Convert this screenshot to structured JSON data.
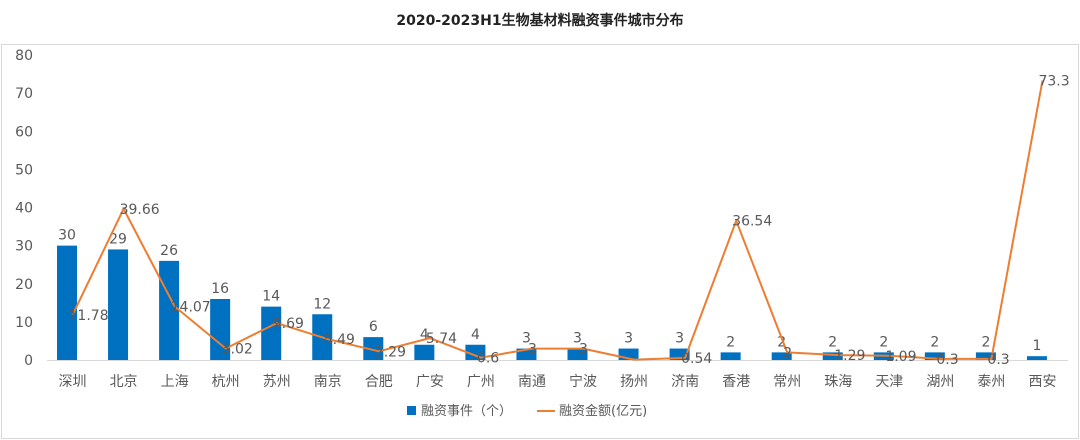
{
  "chart_data": {
    "type": "bar",
    "title": "2020-2023H1生物基材料融资事件城市分布",
    "categories": [
      "深圳",
      "北京",
      "上海",
      "杭州",
      "苏州",
      "南京",
      "合肥",
      "广安",
      "广州",
      "南通",
      "宁波",
      "扬州",
      "济南",
      "香港",
      "常州",
      "珠海",
      "天津",
      "湖州",
      "泰州",
      "西安"
    ],
    "series": [
      {
        "name": "融资事件（个）",
        "type": "bar",
        "values": [
          30,
          29,
          26,
          16,
          14,
          12,
          6,
          4,
          4,
          3,
          3,
          3,
          3,
          2,
          2,
          2,
          2,
          2,
          2,
          1
        ]
      },
      {
        "name": "融资金额(亿元)",
        "type": "line",
        "values": [
          11.78,
          39.66,
          14.07,
          3.02,
          9.69,
          5.49,
          2.29,
          5.74,
          0.6,
          3,
          3,
          0.1,
          0.54,
          36.54,
          2,
          1.29,
          1.09,
          0.3,
          0.3,
          73.3
        ]
      }
    ],
    "point_labels": [
      "11.78",
      "39.66",
      "14.07",
      "3.02",
      "9.69",
      "5.49",
      "2.29",
      "5.74",
      "0.6",
      "3",
      "3",
      "",
      "0.54",
      "36.54",
      "2",
      "1.29",
      "1.09",
      "0.3",
      "0.3",
      "73.3"
    ],
    "ylim": [
      0,
      80
    ],
    "yticks": [
      0,
      10,
      20,
      30,
      40,
      50,
      60,
      70,
      80
    ],
    "xlabel": "",
    "ylabel": "",
    "grid": false,
    "legend_position": "bottom",
    "colors": {
      "bar": "#0070C0",
      "line": "#ED7D31",
      "frame": "#D9D9D9",
      "text": "#595959"
    }
  }
}
